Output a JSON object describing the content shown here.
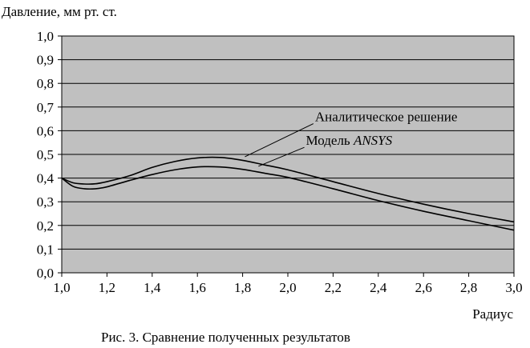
{
  "chart_data": {
    "type": "line",
    "ylabel": "Давление, мм рт. ст.",
    "xlabel": "Радиус",
    "caption": "Рис. 3. Сравнение полученных результатов",
    "xlim": [
      1.0,
      3.0
    ],
    "ylim": [
      0.0,
      1.0
    ],
    "x_ticks": [
      "1,0",
      "1,2",
      "1,4",
      "1,6",
      "1,8",
      "2,0",
      "2,2",
      "2,4",
      "2,6",
      "2,8",
      "3,0"
    ],
    "y_ticks": [
      "0,0",
      "0,1",
      "0,2",
      "0,3",
      "0,4",
      "0,5",
      "0,6",
      "0,7",
      "0,8",
      "0,9",
      "1,0"
    ],
    "grid": "horizontal",
    "colors": {
      "plot_background": "#c0c0c0",
      "line": "#000000",
      "grid": "#000000"
    },
    "series": [
      {
        "name": "Аналитическое решение",
        "x": [
          1.0,
          1.05,
          1.1,
          1.15,
          1.2,
          1.3,
          1.4,
          1.5,
          1.6,
          1.7,
          1.8,
          1.9,
          2.0,
          2.2,
          2.4,
          2.6,
          2.8,
          3.0
        ],
        "y": [
          0.4,
          0.38,
          0.375,
          0.376,
          0.385,
          0.41,
          0.445,
          0.47,
          0.485,
          0.487,
          0.475,
          0.455,
          0.435,
          0.385,
          0.335,
          0.29,
          0.25,
          0.215
        ]
      },
      {
        "name": "Модель ANSYS",
        "x": [
          1.0,
          1.05,
          1.1,
          1.15,
          1.2,
          1.3,
          1.4,
          1.5,
          1.6,
          1.7,
          1.8,
          1.9,
          2.0,
          2.2,
          2.4,
          2.6,
          2.8,
          3.0
        ],
        "y": [
          0.4,
          0.365,
          0.355,
          0.355,
          0.363,
          0.39,
          0.415,
          0.435,
          0.447,
          0.447,
          0.437,
          0.42,
          0.403,
          0.355,
          0.305,
          0.26,
          0.22,
          0.18
        ]
      }
    ],
    "annotations": [
      {
        "text_main": "Аналитическое решение",
        "text_italic": "",
        "series_index": 0,
        "x": 1.81,
        "y": 0.49,
        "text_x": 2.12,
        "text_y": 0.64
      },
      {
        "text_main": "Модель ",
        "text_italic": "ANSYS",
        "series_index": 1,
        "x": 1.87,
        "y": 0.45,
        "text_x": 2.08,
        "text_y": 0.54
      }
    ]
  }
}
